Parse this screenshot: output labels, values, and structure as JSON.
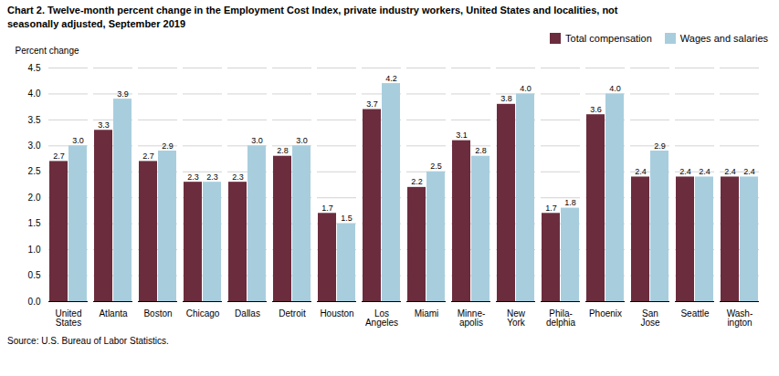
{
  "chart_data": {
    "type": "bar",
    "title": "Chart 2. Twelve-month percent change in the Employment Cost Index, private industry workers, United States and localities, not\nseasonally adjusted, September 2019",
    "ylabel": "Percent change",
    "source": "Source: U.S. Bureau of Labor Statistics.",
    "categories": [
      "United\nStates",
      "Atlanta",
      "Boston",
      "Chicago",
      "Dallas",
      "Detroit",
      "Houston",
      "Los\nAngeles",
      "Miami",
      "Minne-\napolis",
      "New\nYork",
      "Phila-\ndelphia",
      "Phoenix",
      "San\nJose",
      "Seattle",
      "Wash-\nington"
    ],
    "series": [
      {
        "name": "Total compensation",
        "color": "#6B2D3E",
        "values": [
          2.7,
          3.3,
          2.7,
          2.3,
          2.3,
          2.8,
          1.7,
          3.7,
          2.2,
          3.1,
          3.8,
          1.7,
          3.6,
          2.4,
          2.4,
          2.4
        ]
      },
      {
        "name": "Wages and salaries",
        "color": "#A8CEDE",
        "values": [
          3.0,
          3.9,
          2.9,
          2.3,
          3.0,
          3.0,
          1.5,
          4.2,
          2.5,
          2.8,
          4.0,
          1.8,
          4.0,
          2.9,
          2.4,
          2.4
        ],
        "value_labels": [
          "3.0",
          "3.9",
          "2.9",
          "2.3",
          "3.0",
          "3.0",
          "1.5",
          "4.2",
          "2.5",
          "2.8",
          "4.0",
          "1.8",
          "4.0",
          "2.9",
          "2.4",
          "2.4"
        ]
      }
    ],
    "ylim": [
      0,
      4.5
    ],
    "yticks": [
      {
        "value": 0,
        "label": "0.0"
      },
      0.5,
      {
        "value": 1,
        "label": "1.0"
      },
      1.5,
      {
        "value": 2,
        "label": "2.0"
      },
      2.5,
      {
        "value": 3,
        "label": "3.0"
      },
      3.5,
      {
        "value": 4,
        "label": "4.0"
      },
      4.5
    ],
    "grid": true,
    "legend": "upper right",
    "data_labels": true
  }
}
